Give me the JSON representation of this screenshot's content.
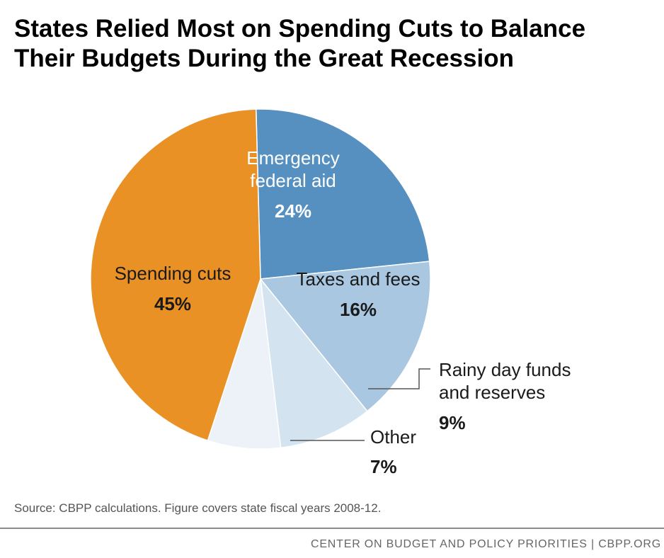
{
  "chart_data": {
    "type": "pie",
    "title": "States Relied Most on Spending Cuts to Balance Their Budgets During the Great Recession",
    "title_lines": [
      "States Relied Most on Spending Cuts to Balance",
      "Their Budgets During the Great Recession"
    ],
    "slices": [
      {
        "label_lines": [
          "Emergency",
          "federal aid"
        ],
        "value": 24,
        "value_label": "24%",
        "color": "#5690c1"
      },
      {
        "label_lines": [
          "Taxes and fees"
        ],
        "value": 16,
        "value_label": "16%",
        "color": "#a9c7e1"
      },
      {
        "label_lines": [
          "Rainy day funds",
          "and reserves"
        ],
        "value": 9,
        "value_label": "9%",
        "color": "#d3e3ef"
      },
      {
        "label_lines": [
          "Other"
        ],
        "value": 7,
        "value_label": "7%",
        "color": "#ecf2f8"
      },
      {
        "label_lines": [
          "Spending cuts"
        ],
        "value": 45,
        "value_label": "45%",
        "color": "#ea9126"
      }
    ]
  },
  "source_note": "Source: CBPP calculations. Figure covers state fiscal years 2008-12.",
  "footer": "CENTER ON BUDGET AND POLICY PRIORITIES | CBPP.ORG"
}
